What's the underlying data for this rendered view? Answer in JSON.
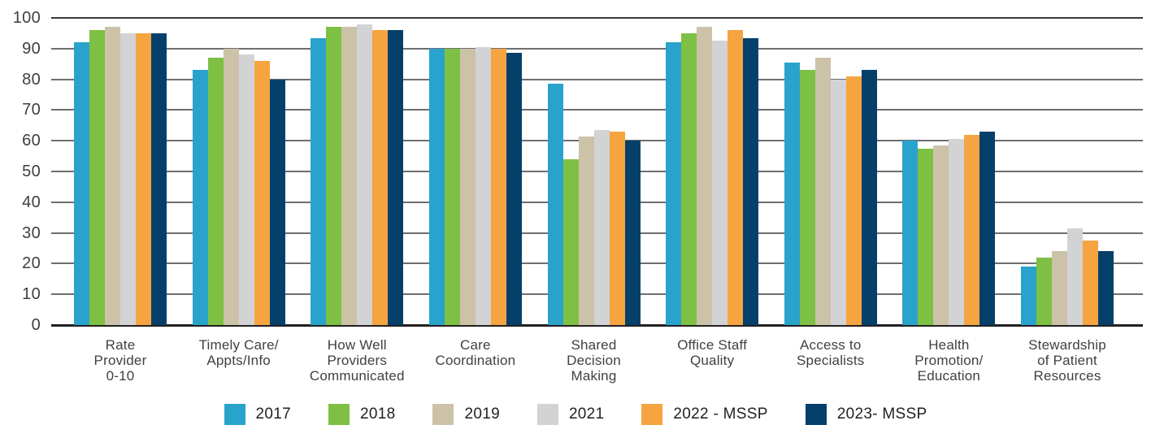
{
  "chart_data": {
    "type": "bar",
    "title": "",
    "xlabel": "",
    "ylabel": "",
    "ylim": [
      0,
      100
    ],
    "yticks": [
      0,
      10,
      20,
      30,
      40,
      50,
      60,
      70,
      80,
      90,
      100
    ],
    "grid": "horizontal",
    "legend_position": "bottom",
    "categories": [
      "Rate\nProvider\n0-10",
      "Timely Care/\nAppts/Info",
      "How Well\nProviders\nCommunicated",
      "Care\nCoordination",
      "Shared\nDecision\nMaking",
      "Office Staff\nQuality",
      "Access to\nSpecialists",
      "Health\nPromotion/\nEducation",
      "Stewardship\nof Patient\nResources"
    ],
    "series": [
      {
        "name": "2017",
        "color": "#29A3CC",
        "values": [
          92,
          83,
          93.5,
          90,
          78.5,
          92,
          85.5,
          60,
          19
        ]
      },
      {
        "name": "2018",
        "color": "#7EC043",
        "values": [
          96,
          87,
          97,
          90,
          54,
          95,
          83,
          57.5,
          22
        ]
      },
      {
        "name": "2019",
        "color": "#CCC2A8",
        "values": [
          97,
          90,
          97,
          90,
          61.5,
          97,
          87,
          58.5,
          24
        ]
      },
      {
        "name": "2021",
        "color": "#D2D3D5",
        "values": [
          95,
          88,
          98,
          90.5,
          63.5,
          92.5,
          80,
          60.5,
          31.5
        ]
      },
      {
        "name": "2022 - MSSP",
        "color": "#F6A440",
        "values": [
          95,
          86,
          96,
          90,
          63,
          96,
          81,
          62,
          27.5
        ]
      },
      {
        "name": "2023- MSSP",
        "color": "#05406A",
        "values": [
          95,
          80,
          96,
          88.5,
          60,
          93.5,
          83,
          63,
          24
        ]
      }
    ]
  }
}
